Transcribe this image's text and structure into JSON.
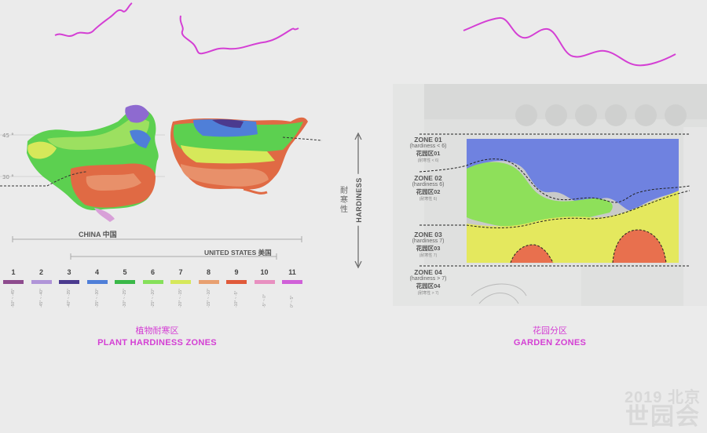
{
  "left": {
    "lat_labels": [
      "45 °",
      "30 °"
    ],
    "china_label": "CHINA 中国",
    "us_label": "UNITED STATES 美国",
    "zones": [
      {
        "num": "1",
        "color": "#8e4b8e",
        "range": "-50° ~ -45°"
      },
      {
        "num": "2",
        "color": "#b095d8",
        "range": "-45° ~ -40°"
      },
      {
        "num": "3",
        "color": "#4b3a8f",
        "range": "-40° ~ -35°"
      },
      {
        "num": "4",
        "color": "#4f7fd8",
        "range": "-35° ~ -30°"
      },
      {
        "num": "5",
        "color": "#3ab848",
        "range": "-30° ~ -25°"
      },
      {
        "num": "6",
        "color": "#86e05a",
        "range": "-25° ~ -20°"
      },
      {
        "num": "7",
        "color": "#d6e85a",
        "range": "-20° ~ -15°"
      },
      {
        "num": "8",
        "color": "#e8a070",
        "range": "-15° ~ -10°"
      },
      {
        "num": "9",
        "color": "#e05a3a",
        "range": "-10° ~ -5°"
      },
      {
        "num": "10",
        "color": "#e890c0",
        "range": "-5° ~ 0°"
      },
      {
        "num": "11",
        "color": "#d060d8",
        "range": "0° ~ 5°"
      }
    ],
    "caption_cn": "植物耐寒区",
    "caption_en": "PLANT HARDINESS ZONES"
  },
  "axis": {
    "label_en": "HARDINESS",
    "label_cn": "耐寒性"
  },
  "right": {
    "zones": [
      {
        "title": "ZONE 01",
        "hardiness": "(hardiness < 6)",
        "cn": "花园区01",
        "small": "(耐寒性 < 6)"
      },
      {
        "title": "ZONE 02",
        "hardiness": "(hardiness 6)",
        "cn": "花园区02",
        "small": "(耐寒性 6)"
      },
      {
        "title": "ZONE 03",
        "hardiness": "(hardiness 7)",
        "cn": "花园区03",
        "small": "(耐寒性 7)"
      },
      {
        "title": "ZONE 04",
        "hardiness": "(hardiness > 7)",
        "cn": "花园区04",
        "small": "(耐寒性 > 7)"
      }
    ],
    "caption_cn": "花园分区",
    "caption_en": "GARDEN ZONES"
  },
  "watermark": {
    "year": "2019 北京",
    "name": "世园会"
  },
  "colors": {
    "magenta": "#d43fd4",
    "zone_blue": "#6f82e0",
    "zone_green": "#8ee05a",
    "zone_yellow": "#e4e85e",
    "zone_red": "#e8704e"
  }
}
